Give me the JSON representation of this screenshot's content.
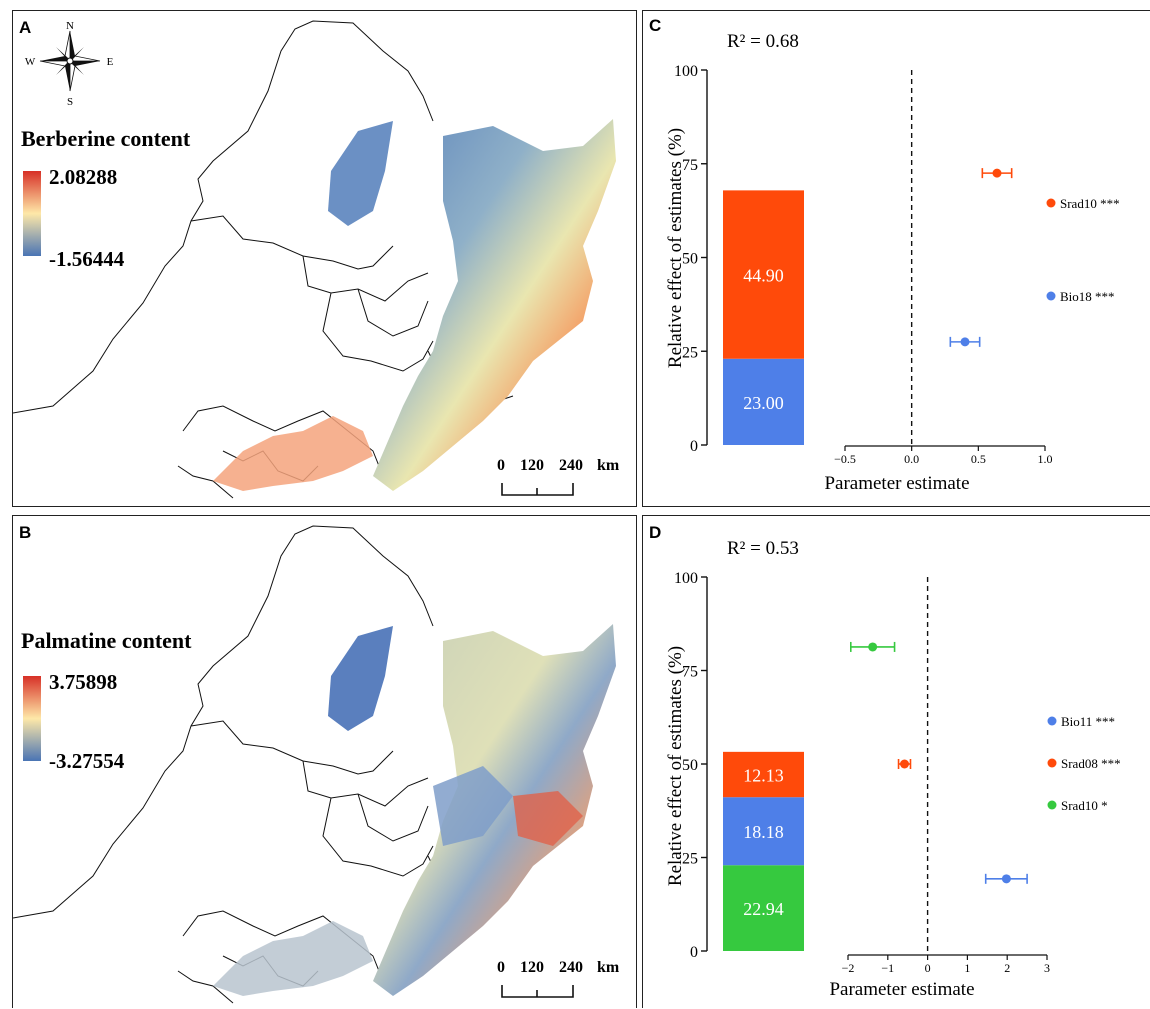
{
  "panels": {
    "a": {
      "label": "A",
      "legend_title": "Berberine content",
      "legend_max": "2.08288",
      "legend_min": "-1.56444",
      "colors": {
        "high": "#d73027",
        "mid": "#fee8a8",
        "low": "#4a74b4"
      }
    },
    "b": {
      "label": "B",
      "legend_title": "Palmatine content",
      "legend_max": "3.75898",
      "legend_min": "-3.27554",
      "colors": {
        "high": "#d73027",
        "mid": "#fee8a8",
        "low": "#4a74b4"
      }
    },
    "c": {
      "label": "C"
    },
    "d": {
      "label": "D"
    }
  },
  "compass": {
    "n": "N",
    "s": "S",
    "e": "E",
    "w": "W"
  },
  "scalebar": {
    "ticks": [
      "0",
      "120",
      "240"
    ],
    "unit": "km"
  },
  "chart_data": [
    {
      "type": "bar",
      "panel": "C",
      "annotation": "R² = 0.68",
      "ylabel": "Relative effect of estimates (%)",
      "xlabel": "Parameter estimate",
      "ylim": [
        0,
        100
      ],
      "yticks": [
        0,
        25,
        50,
        75,
        100
      ],
      "xlim": [
        -0.5,
        1.0
      ],
      "xticks": [
        -0.5,
        0.0,
        0.5,
        1.0
      ],
      "xtick_labels": [
        "−0.5",
        "0.0",
        "0.5",
        "1.0"
      ],
      "stack": [
        {
          "value": 23.0,
          "label": "23.00",
          "color": "#4e7fe8"
        },
        {
          "value": 44.9,
          "label": "44.90",
          "color": "#ff4a0a"
        }
      ],
      "estimates": [
        {
          "name": "Srad10",
          "sig": "***",
          "estimate": 0.64,
          "err": 0.11,
          "y": 72.5,
          "color": "#ff4a0a"
        },
        {
          "name": "Bio18",
          "sig": "***",
          "estimate": 0.4,
          "err": 0.11,
          "y": 27.5,
          "color": "#4e7fe8"
        }
      ]
    },
    {
      "type": "bar",
      "panel": "D",
      "annotation": "R² = 0.53",
      "ylabel": "Relative effect of estimates (%)",
      "xlabel": "Parameter estimate",
      "ylim": [
        0,
        100
      ],
      "yticks": [
        0,
        25,
        50,
        75,
        100
      ],
      "xlim": [
        -2,
        3
      ],
      "xticks": [
        -2,
        -1,
        0,
        1,
        2,
        3
      ],
      "xtick_labels": [
        "−2",
        "−1",
        "0",
        "1",
        "2",
        "3"
      ],
      "stack": [
        {
          "value": 22.94,
          "label": "22.94",
          "color": "#36c93f"
        },
        {
          "value": 18.18,
          "label": "18.18",
          "color": "#4e7fe8"
        },
        {
          "value": 12.13,
          "label": "12.13",
          "color": "#ff4a0a"
        }
      ],
      "estimates": [
        {
          "name": "Bio11",
          "sig": "***",
          "estimate": 1.98,
          "err": 0.52,
          "y": 19.3,
          "color": "#4e7fe8"
        },
        {
          "name": "Srad08",
          "sig": "***",
          "estimate": -0.58,
          "err": 0.15,
          "y": 50.0,
          "color": "#ff4a0a"
        },
        {
          "name": "Srad10",
          "sig": "*",
          "estimate": -1.38,
          "err": 0.55,
          "y": 81.3,
          "color": "#36c93f"
        }
      ]
    }
  ]
}
